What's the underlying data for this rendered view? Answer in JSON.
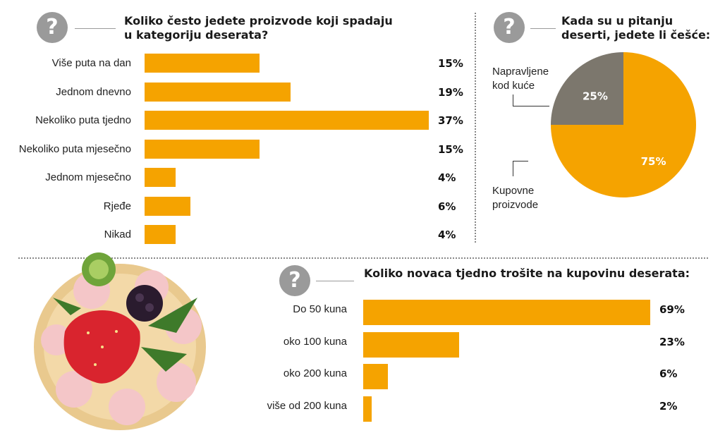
{
  "colors": {
    "accent": "#F5A300",
    "home": "#7C776D",
    "icon": "#9A9A9A"
  },
  "icon_text": "?",
  "chart_data": [
    {
      "type": "bar",
      "title": "Koliko često jedete proizvode koji spadaju u kategoriju deserata?",
      "title_lines": [
        "Koliko često jedete proizvode koji spadaju",
        "u kategoriju deserata?"
      ],
      "categories": [
        "Više puta na dan",
        "Jednom dnevno",
        "Nekoliko puta tjedno",
        "Nekoliko puta mjesečno",
        "Jednom mjesečno",
        "Rjeđe",
        "Nikad"
      ],
      "values": [
        15,
        19,
        37,
        15,
        4,
        6,
        4
      ],
      "labels": [
        "15%",
        "19%",
        "37%",
        "15%",
        "4%",
        "6%",
        "4%"
      ],
      "xlim": [
        0,
        37
      ],
      "grid": false
    },
    {
      "type": "pie",
      "title": "Kada su u pitanju deserti, jedete li češće:",
      "title_lines": [
        "Kada su u pitanju",
        "deserti, jedete li češće:"
      ],
      "categories": [
        "Napravljene kod kuće",
        "Kupovne proizvode"
      ],
      "category_lines": [
        [
          "Napravljene",
          "kod kuće"
        ],
        [
          "Kupovne",
          "proizvode"
        ]
      ],
      "values": [
        25,
        75
      ],
      "labels": [
        "25%",
        "75%"
      ]
    },
    {
      "type": "bar",
      "title": "Koliko novaca tjedno trošite na kupovinu deserata:",
      "categories": [
        "Do 50 kuna",
        "oko 100 kuna",
        "oko 200 kuna",
        "više od 200 kuna"
      ],
      "values": [
        69,
        23,
        6,
        2
      ],
      "labels": [
        "69%",
        "23%",
        "6%",
        "2%"
      ],
      "xlim": [
        0,
        69
      ],
      "grid": false
    }
  ]
}
